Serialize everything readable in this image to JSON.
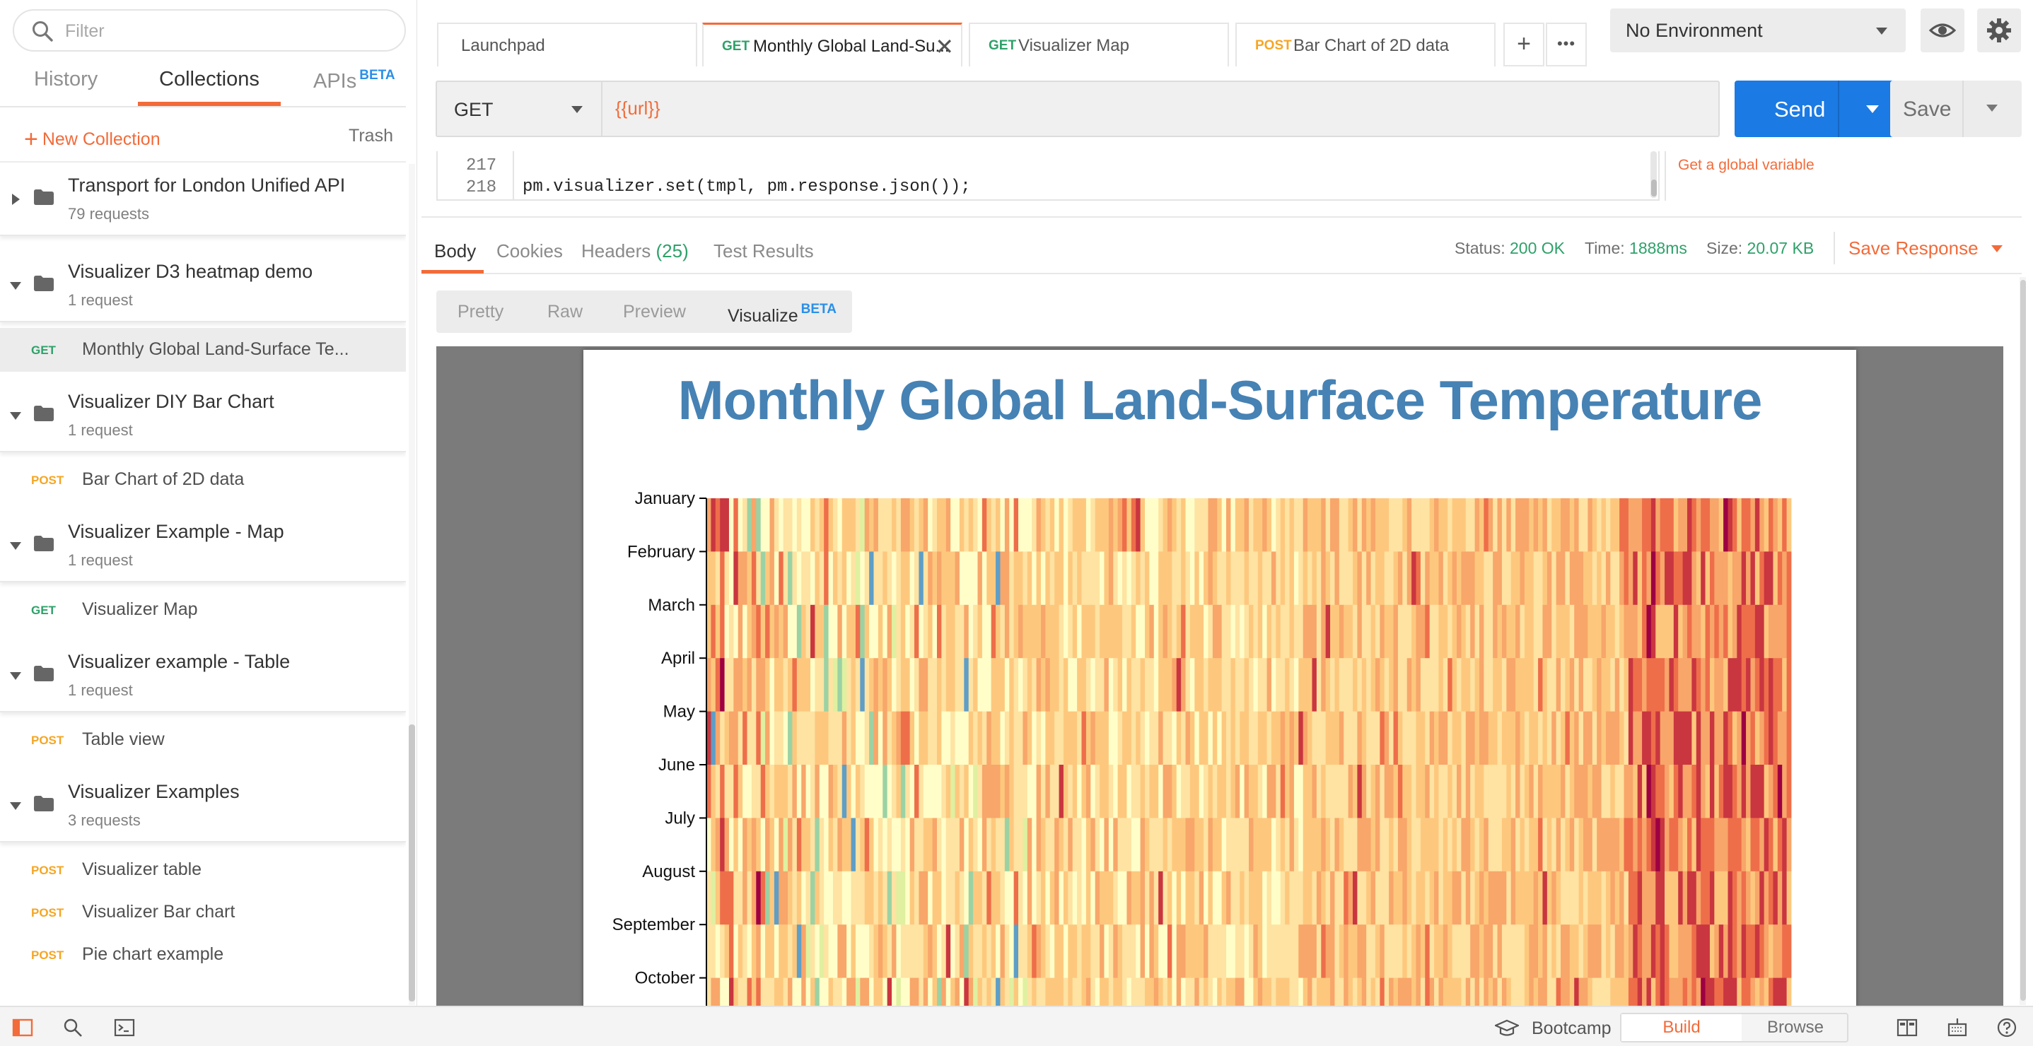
{
  "sidebar": {
    "search_placeholder": "Filter",
    "tabs": [
      {
        "label": "History"
      },
      {
        "label": "Collections"
      },
      {
        "label": "APIs",
        "badge": "BETA"
      }
    ],
    "new_collection_label": "New Collection",
    "trash_label": "Trash",
    "collections": [
      {
        "name": "Transport for London Unified API",
        "count": "79 requests",
        "expanded": false,
        "requests": []
      },
      {
        "name": "Visualizer D3 heatmap demo",
        "count": "1 request",
        "expanded": true,
        "requests": [
          {
            "method": "GET",
            "name": "Monthly Global Land-Surface Te...",
            "selected": true
          }
        ]
      },
      {
        "name": "Visualizer DIY Bar Chart",
        "count": "1 request",
        "expanded": true,
        "requests": [
          {
            "method": "POST",
            "name": "Bar Chart of 2D data",
            "selected": false
          }
        ]
      },
      {
        "name": "Visualizer Example - Map",
        "count": "1 request",
        "expanded": true,
        "requests": [
          {
            "method": "GET",
            "name": "Visualizer Map",
            "selected": false
          }
        ]
      },
      {
        "name": "Visualizer example - Table",
        "count": "1 request",
        "expanded": true,
        "requests": [
          {
            "method": "POST",
            "name": "Table view",
            "selected": false
          }
        ]
      },
      {
        "name": "Visualizer Examples",
        "count": "3 requests",
        "expanded": true,
        "requests": [
          {
            "method": "POST",
            "name": "Visualizer table",
            "selected": false
          },
          {
            "method": "POST",
            "name": "Visualizer Bar chart",
            "selected": false
          },
          {
            "method": "POST",
            "name": "Pie chart example",
            "selected": false
          }
        ]
      }
    ]
  },
  "tabs": [
    {
      "method": "",
      "name": "Launchpad",
      "active": false
    },
    {
      "method": "GET",
      "name": "Monthly Global Land-Su...",
      "active": true
    },
    {
      "method": "GET",
      "name": "Visualizer Map",
      "active": false
    },
    {
      "method": "POST",
      "name": "Bar Chart of 2D data",
      "active": false
    }
  ],
  "tab_actions": {
    "add": "+",
    "more": "•••"
  },
  "environment": {
    "selected": "No Environment"
  },
  "request": {
    "method": "GET",
    "url": "{{url}}",
    "send_label": "Send",
    "save_label": "Save"
  },
  "editor": {
    "lines": [
      {
        "number": "217",
        "code": ""
      },
      {
        "number": "218",
        "code": "pm.visualizer.set(tmpl, pm.response.json());"
      }
    ],
    "snippet": "Get a global variable"
  },
  "response": {
    "tabs": [
      {
        "label": "Body",
        "active": true
      },
      {
        "label": "Cookies",
        "active": false
      },
      {
        "label": "Headers",
        "count": "(25)",
        "active": false
      },
      {
        "label": "Test Results",
        "active": false
      }
    ],
    "status_label": "Status:",
    "status": "200 OK",
    "time_label": "Time:",
    "time": "1888ms",
    "size_label": "Size:",
    "size": "20.07 KB",
    "save_response_label": "Save Response",
    "view_tabs": [
      {
        "label": "Pretty"
      },
      {
        "label": "Raw"
      },
      {
        "label": "Preview"
      },
      {
        "label": "Visualize",
        "badge": "BETA"
      }
    ]
  },
  "chart_data": {
    "type": "heatmap",
    "title": "Monthly Global Land-Surface Temperature",
    "y_categories": [
      "January",
      "February",
      "March",
      "April",
      "May",
      "June",
      "July",
      "August",
      "September",
      "October"
    ],
    "color_scale": [
      "#5e9ec7",
      "#9bd2a4",
      "#dff0a0",
      "#fffec8",
      "#fee3a2",
      "#fdc87e",
      "#f8a66a",
      "#ee6e4a",
      "#c9363f",
      "#9e0142"
    ],
    "column_count": 240,
    "trend": "cool and mixed on the left, warmer (orange/red) toward the right",
    "rows_shown": 10
  },
  "statusbar": {
    "bootcamp_label": "Bootcamp",
    "build_label": "Build",
    "browse_label": "Browse"
  }
}
